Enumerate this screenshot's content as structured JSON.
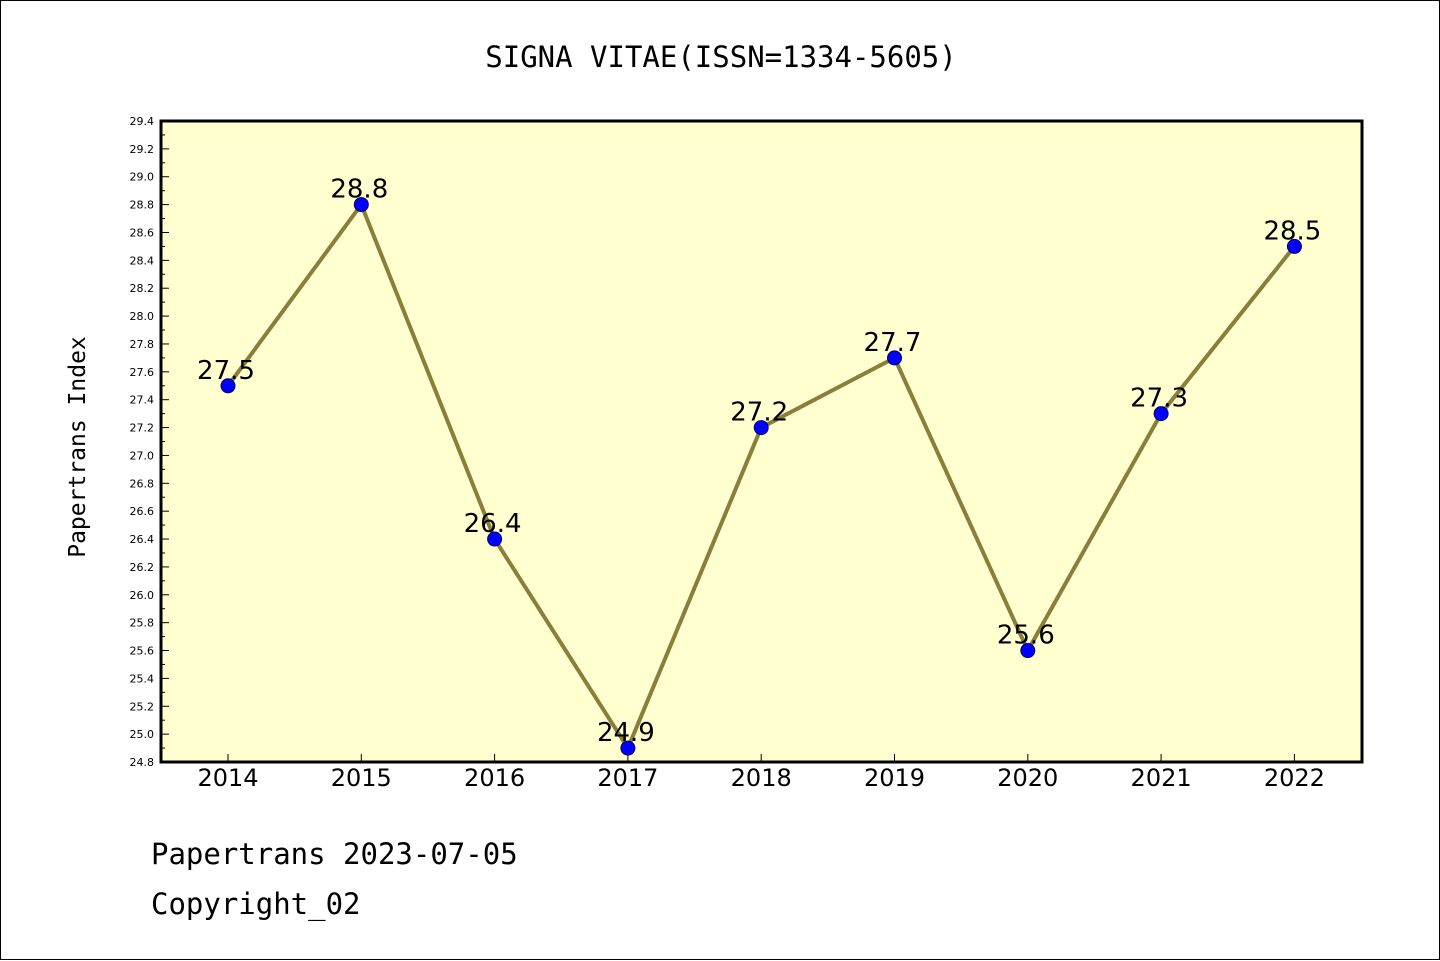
{
  "chart_data": {
    "type": "line",
    "title": "SIGNA VITAE(ISSN=1334-5605)",
    "xlabel": "",
    "ylabel": "Papertrans Index",
    "categories": [
      "2014",
      "2015",
      "2016",
      "2017",
      "2018",
      "2019",
      "2020",
      "2021",
      "2022"
    ],
    "values": [
      27.5,
      28.8,
      26.4,
      24.9,
      27.2,
      27.7,
      25.6,
      27.3,
      28.5
    ],
    "data_labels": [
      "27.5",
      "28.8",
      "26.4",
      "24.9",
      "27.2",
      "27.7",
      "25.6",
      "27.3",
      "28.5"
    ],
    "ylim": [
      24.8,
      29.4
    ],
    "ytick_labels": [
      "24.8",
      "25.0",
      "25.2",
      "25.4",
      "25.6",
      "25.8",
      "26.0",
      "26.2",
      "26.4",
      "26.6",
      "26.8",
      "27.0",
      "27.2",
      "27.4",
      "27.6",
      "27.8",
      "28.0",
      "28.2",
      "28.4",
      "28.6",
      "28.8",
      "29.0",
      "29.2",
      "29.4"
    ],
    "grid": false,
    "legend": "none",
    "colors": {
      "plot_background": "#FFFFD0",
      "line": "#8B7D3A",
      "marker": "#0000FF"
    }
  },
  "footer": {
    "date_text": "Papertrans 2023-07-05",
    "copyright_text": "Copyright_02"
  }
}
